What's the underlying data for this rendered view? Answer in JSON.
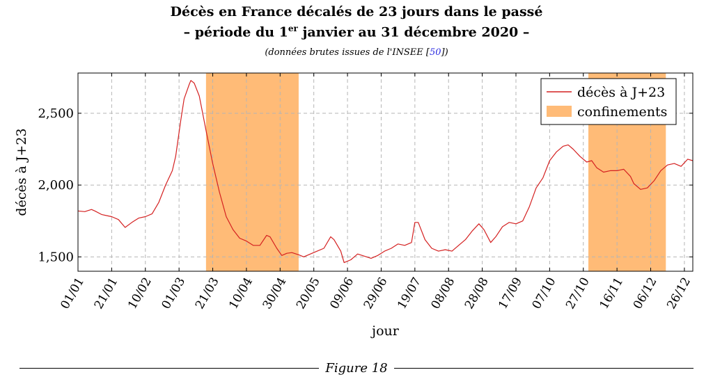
{
  "header": {
    "title_line1": "Décès en France décalés de 23 jours dans le passé",
    "title_line2_pre": "– période du 1",
    "title_line2_sup": "er",
    "title_line2_post": " janvier au 31 décembre 2020 –",
    "subtitle_pre": "(données brutes issues de l'INSEE [",
    "subtitle_ref": "50",
    "subtitle_post": "])"
  },
  "figure_label": "Figure 18",
  "chart_data": {
    "type": "line",
    "xlabel": "jour",
    "ylabel": "décès à J+23",
    "x_range": [
      0,
      365
    ],
    "ylim": [
      1400,
      2780
    ],
    "y_ticks": [
      1500,
      2000,
      2500
    ],
    "y_tick_labels": [
      "1,500",
      "2,000",
      "2,500"
    ],
    "x_ticks": [
      0,
      20,
      40,
      60,
      80,
      100,
      120,
      140,
      160,
      180,
      200,
      220,
      240,
      260,
      280,
      300,
      320,
      340,
      360
    ],
    "x_tick_labels": [
      "01/01",
      "21/01",
      "10/02",
      "01/03",
      "21/03",
      "10/04",
      "30/04",
      "20/05",
      "09/06",
      "29/06",
      "19/07",
      "08/08",
      "28/08",
      "17/09",
      "07/10",
      "27/10",
      "16/11",
      "06/12",
      "26/12"
    ],
    "grid": true,
    "legend_position": "top-right",
    "line_color": "#d42020",
    "band_color": "#ffbb77",
    "series": [
      {
        "name": "décès à J+23",
        "points": [
          [
            0,
            1820
          ],
          [
            4,
            1815
          ],
          [
            8,
            1830
          ],
          [
            10,
            1820
          ],
          [
            14,
            1795
          ],
          [
            18,
            1785
          ],
          [
            20,
            1780
          ],
          [
            24,
            1760
          ],
          [
            28,
            1705
          ],
          [
            32,
            1740
          ],
          [
            36,
            1770
          ],
          [
            40,
            1780
          ],
          [
            44,
            1800
          ],
          [
            48,
            1880
          ],
          [
            52,
            2000
          ],
          [
            56,
            2100
          ],
          [
            58,
            2200
          ],
          [
            61,
            2450
          ],
          [
            63,
            2600
          ],
          [
            66,
            2700
          ],
          [
            67,
            2728
          ],
          [
            69,
            2710
          ],
          [
            72,
            2620
          ],
          [
            76,
            2380
          ],
          [
            80,
            2150
          ],
          [
            84,
            1950
          ],
          [
            88,
            1780
          ],
          [
            92,
            1690
          ],
          [
            96,
            1630
          ],
          [
            100,
            1610
          ],
          [
            104,
            1580
          ],
          [
            108,
            1580
          ],
          [
            112,
            1650
          ],
          [
            114,
            1640
          ],
          [
            118,
            1560
          ],
          [
            121,
            1510
          ],
          [
            124,
            1525
          ],
          [
            127,
            1530
          ],
          [
            131,
            1515
          ],
          [
            134,
            1500
          ],
          [
            138,
            1520
          ],
          [
            142,
            1540
          ],
          [
            146,
            1560
          ],
          [
            150,
            1640
          ],
          [
            152,
            1620
          ],
          [
            156,
            1540
          ],
          [
            158,
            1460
          ],
          [
            162,
            1480
          ],
          [
            166,
            1520
          ],
          [
            170,
            1505
          ],
          [
            174,
            1490
          ],
          [
            178,
            1510
          ],
          [
            182,
            1540
          ],
          [
            186,
            1560
          ],
          [
            190,
            1590
          ],
          [
            194,
            1580
          ],
          [
            198,
            1600
          ],
          [
            200,
            1740
          ],
          [
            202,
            1740
          ],
          [
            206,
            1620
          ],
          [
            210,
            1560
          ],
          [
            214,
            1540
          ],
          [
            218,
            1550
          ],
          [
            222,
            1540
          ],
          [
            226,
            1580
          ],
          [
            230,
            1620
          ],
          [
            234,
            1680
          ],
          [
            238,
            1730
          ],
          [
            241,
            1690
          ],
          [
            245,
            1600
          ],
          [
            248,
            1640
          ],
          [
            252,
            1710
          ],
          [
            256,
            1740
          ],
          [
            260,
            1730
          ],
          [
            264,
            1750
          ],
          [
            268,
            1850
          ],
          [
            272,
            1980
          ],
          [
            276,
            2050
          ],
          [
            280,
            2170
          ],
          [
            284,
            2230
          ],
          [
            288,
            2270
          ],
          [
            291,
            2280
          ],
          [
            294,
            2250
          ],
          [
            298,
            2200
          ],
          [
            302,
            2160
          ],
          [
            305,
            2170
          ],
          [
            308,
            2120
          ],
          [
            312,
            2090
          ],
          [
            316,
            2100
          ],
          [
            320,
            2100
          ],
          [
            324,
            2110
          ],
          [
            328,
            2060
          ],
          [
            330,
            2010
          ],
          [
            334,
            1970
          ],
          [
            338,
            1980
          ],
          [
            342,
            2030
          ],
          [
            346,
            2100
          ],
          [
            350,
            2140
          ],
          [
            354,
            2150
          ],
          [
            358,
            2130
          ],
          [
            362,
            2180
          ],
          [
            365,
            2170
          ]
        ]
      },
      {
        "name": "confinements",
        "bands": [
          [
            76,
            131
          ],
          [
            303,
            349
          ]
        ]
      }
    ]
  }
}
